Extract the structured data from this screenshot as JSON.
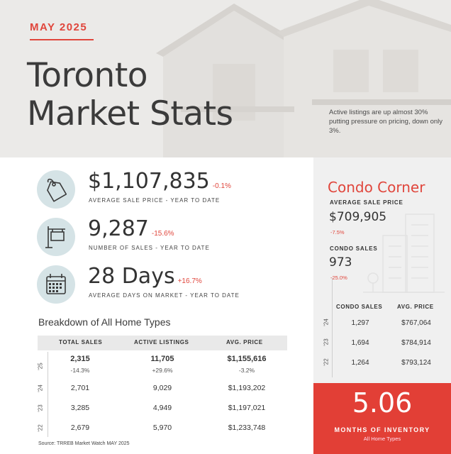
{
  "header": {
    "period": "MAY 2025",
    "title_line1": "Toronto",
    "title_line2": "Market Stats",
    "note": "Active listings are up almost 30% putting pressure on pricing, down only 3%."
  },
  "stats": [
    {
      "icon": "price-tag-icon",
      "value": "$1,107,835",
      "change": "-0.1%",
      "label": "AVERAGE SALE PRICE - YEAR TO DATE"
    },
    {
      "icon": "sale-sign-icon",
      "value": "9,287",
      "change": "-15.6%",
      "label": "NUMBER OF SALES - YEAR TO DATE"
    },
    {
      "icon": "calendar-icon",
      "value": "28 Days",
      "change": "+16.7%",
      "label": "AVERAGE DAYS ON MARKET - YEAR TO DATE"
    }
  ],
  "breakdown": {
    "title": "Breakdown of All Home Types",
    "columns": [
      "TOTAL SALES",
      "ACTIVE LISTINGS",
      "AVG. PRICE"
    ],
    "rows": [
      {
        "year": "'25",
        "sales": "2,315",
        "listings": "11,705",
        "price": "$1,155,616",
        "sales_chg": "-14.3%",
        "listings_chg": "+29.6%",
        "price_chg": "-3.2%"
      },
      {
        "year": "'24",
        "sales": "2,701",
        "listings": "9,029",
        "price": "$1,193,202"
      },
      {
        "year": "'23",
        "sales": "3,285",
        "listings": "4,949",
        "price": "$1,197,021"
      },
      {
        "year": "'22",
        "sales": "2,679",
        "listings": "5,970",
        "price": "$1,233,748"
      }
    ],
    "source": "Source: TRREB Market Watch MAY 2025"
  },
  "condo": {
    "title": "Condo Corner",
    "price_label": "AVERAGE SALE PRICE",
    "price_value": "$709,905",
    "price_change": "-7.5%",
    "sales_label": "CONDO SALES",
    "sales_value": "973",
    "sales_change": "-25.0%",
    "columns": [
      "CONDO SALES",
      "AVG. PRICE"
    ],
    "rows": [
      {
        "year": "'24",
        "sales": "1,297",
        "price": "$767,064"
      },
      {
        "year": "'23",
        "sales": "1,694",
        "price": "$784,914"
      },
      {
        "year": "'22",
        "sales": "1,264",
        "price": "$793,124"
      }
    ]
  },
  "inventory": {
    "value": "5.06",
    "label": "MONTHS OF INVENTORY",
    "sub": "All Home Types"
  },
  "colors": {
    "accent": "#e0463c",
    "icon_circle": "#d5e3e6",
    "panel": "#f0f0f0",
    "inventory_bg": "#e23f36"
  }
}
